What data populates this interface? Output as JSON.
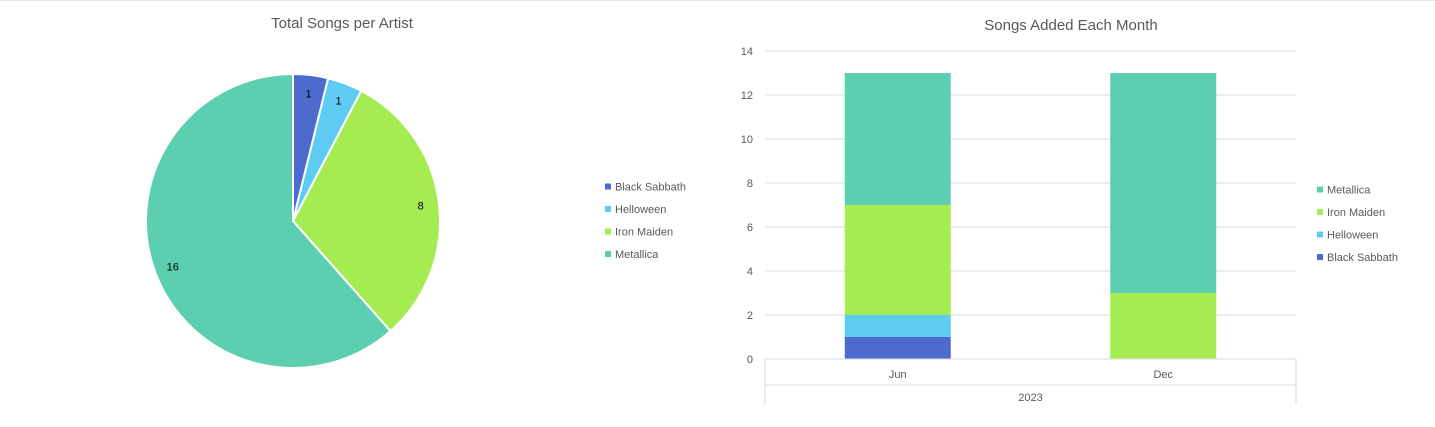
{
  "chart_data": [
    {
      "type": "pie",
      "title": "Total Songs per Artist",
      "categories": [
        "Black Sabbath",
        "Helloween",
        "Iron Maiden",
        "Metallica"
      ],
      "values": [
        1,
        1,
        8,
        16
      ],
      "data_labels": [
        "1",
        "1",
        "8",
        "16"
      ],
      "colors": [
        "#4d6acf",
        "#5ecbf2",
        "#a5eb52",
        "#5ccfb0"
      ],
      "legend_position": "right"
    },
    {
      "type": "bar",
      "stacked": true,
      "title": "Songs Added Each Month",
      "categories": [
        "Jun",
        "Dec"
      ],
      "group_label": "2023",
      "series": [
        {
          "name": "Black Sabbath",
          "values": [
            1,
            0
          ],
          "color": "#4d6acf"
        },
        {
          "name": "Helloween",
          "values": [
            1,
            0
          ],
          "color": "#5ecbf2"
        },
        {
          "name": "Iron Maiden",
          "values": [
            5,
            3
          ],
          "color": "#a5eb52"
        },
        {
          "name": "Metallica",
          "values": [
            6,
            10
          ],
          "color": "#5ccfb0"
        }
      ],
      "legend_order": [
        "Metallica",
        "Iron Maiden",
        "Helloween",
        "Black Sabbath"
      ],
      "ylim": [
        0,
        14
      ],
      "yticks": [
        "0",
        "2",
        "4",
        "6",
        "8",
        "10",
        "12",
        "14"
      ],
      "grid": true,
      "legend_position": "right"
    }
  ]
}
